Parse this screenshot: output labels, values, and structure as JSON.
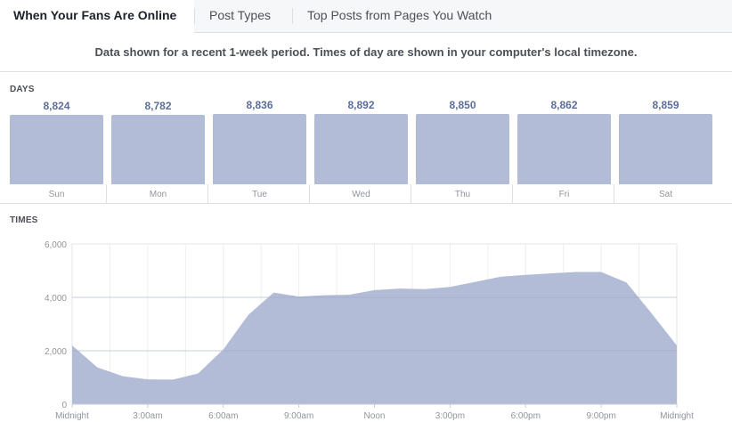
{
  "tabs": [
    {
      "label": "When Your Fans Are Online",
      "active": true
    },
    {
      "label": "Post Types",
      "active": false
    },
    {
      "label": "Top Posts from Pages You Watch",
      "active": false
    }
  ],
  "notice": "Data shown for a recent 1-week period. Times of day are shown in your computer's local timezone.",
  "days_section": {
    "title": "DAYS",
    "days": [
      {
        "label": "Sun",
        "value": "8,824"
      },
      {
        "label": "Mon",
        "value": "8,782"
      },
      {
        "label": "Tue",
        "value": "8,836"
      },
      {
        "label": "Wed",
        "value": "8,892"
      },
      {
        "label": "Thu",
        "value": "8,850"
      },
      {
        "label": "Fri",
        "value": "8,862"
      },
      {
        "label": "Sat",
        "value": "8,859"
      }
    ]
  },
  "times_section": {
    "title": "TIMES"
  },
  "colors": {
    "fill": "#b2bcd7",
    "value_text": "#5b6e9a"
  },
  "chart_data": {
    "type": "area",
    "x_tick_labels": [
      "Midnight",
      "3:00am",
      "6:00am",
      "9:00am",
      "Noon",
      "3:00pm",
      "6:00pm",
      "9:00pm",
      "Midnight"
    ],
    "y_tick_labels": [
      "0",
      "2,000",
      "4,000",
      "6,000"
    ],
    "ylim": [
      0,
      6000
    ],
    "xlim": [
      0,
      24
    ],
    "grid": true,
    "x_hours": [
      0,
      1,
      2,
      3,
      4,
      5,
      6,
      7,
      8,
      9,
      10,
      11,
      12,
      13,
      14,
      15,
      16,
      17,
      18,
      19,
      20,
      21,
      22,
      23,
      24
    ],
    "values": [
      2200,
      1380,
      1050,
      930,
      920,
      1150,
      2050,
      3350,
      4180,
      4030,
      4080,
      4100,
      4270,
      4330,
      4310,
      4390,
      4580,
      4770,
      4840,
      4900,
      4950,
      4950,
      4560,
      3400,
      2200
    ]
  }
}
